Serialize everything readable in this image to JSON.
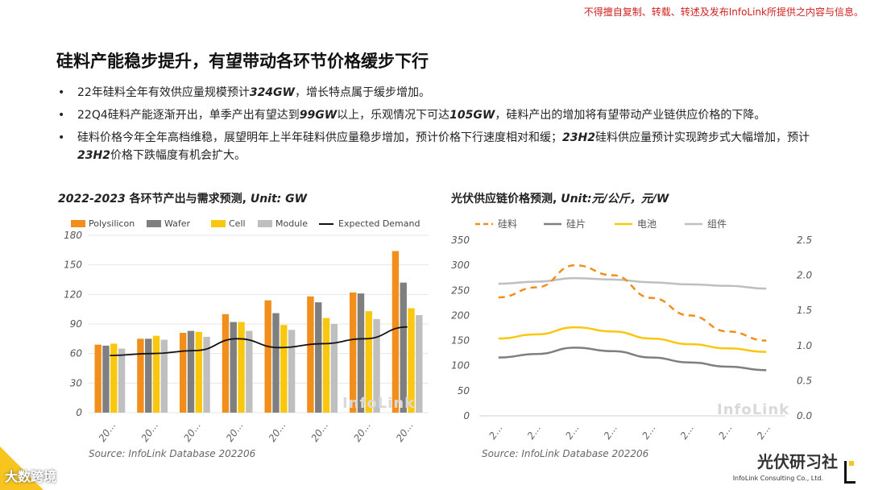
{
  "notice": "不得擅自复制、转载、转述及发布InfoLink所提供之内容与信息。",
  "slide_title": "硅料产能稳步提升，有望带动各环节价格缓步下行",
  "bullets": [
    {
      "a": "22年硅料全年有效供应量规模预计",
      "b": "324GW",
      "c": "，增长特点属于缓步增加。",
      "d": "",
      "e": ""
    },
    {
      "a": "22Q4硅料产能逐渐开出，单季产出有望达到",
      "b": "99GW",
      "c": "以上，乐观情况下可达",
      "d": "105GW",
      "e": "，硅料产出的增加将有望带动产业链供应价格的下降。"
    },
    {
      "a": "硅料价格今年全年高档维稳，展望明年上半年硅料供应量稳步增加，预计价格下行速度相对和缓；",
      "b": "23H2",
      "c": "硅料供应量预计实现跨步式大幅增加，预计",
      "d": "23H2",
      "e": "价格下跌幅度有机会扩大。"
    }
  ],
  "left_chart_title": {
    "year": "2022-2023",
    "text": " 各环节产出与需求预测, ",
    "unit": "Unit: GW"
  },
  "right_chart_title": {
    "text": "光伏供应链价格预测, ",
    "unit": "Unit:元/公斤，元/W"
  },
  "left_source": "Source: InfoLink Database 202206",
  "right_source": "Source: InfoLink Database 202206",
  "watermark": "InfoLink",
  "corner_brand": "大数跨境",
  "brand_name": "光伏研习社",
  "brand_sub": "InfoLink Consulting Co., Ltd.",
  "colors": {
    "polysilicon": "#f28e1c",
    "wafer": "#7f7f7f",
    "cell": "#f9c80e",
    "module": "#bfbfbf",
    "demand": "#111111"
  },
  "chart_data": [
    {
      "type": "bar",
      "categories": [
        "20...",
        "20...",
        "20...",
        "20...",
        "20...",
        "20...",
        "20...",
        "20..."
      ],
      "series": [
        {
          "name": "Polysilicon",
          "values": [
            69,
            75,
            81,
            100,
            114,
            118,
            122,
            164
          ]
        },
        {
          "name": "Wafer",
          "values": [
            68,
            75,
            83,
            92,
            101,
            112,
            121,
            132
          ]
        },
        {
          "name": "Cell",
          "values": [
            70,
            78,
            82,
            92,
            89,
            96,
            103,
            106
          ]
        },
        {
          "name": "Module",
          "values": [
            65,
            74,
            77,
            83,
            84,
            90,
            95,
            99
          ]
        }
      ],
      "line_series": {
        "name": "Expected Demand",
        "values": [
          58,
          60,
          63,
          75,
          66,
          70,
          75,
          87
        ]
      },
      "yticks": [
        0,
        30,
        60,
        90,
        120,
        150,
        180
      ],
      "ylim": [
        0,
        180
      ],
      "legend_position": "top"
    },
    {
      "type": "line",
      "categories": [
        "2...",
        "2...",
        "2...",
        "2...",
        "2...",
        "2...",
        "2...",
        "2..."
      ],
      "series": [
        {
          "name": "硅料",
          "axis": "left",
          "style": "dashed",
          "values": [
            236,
            256,
            300,
            280,
            235,
            200,
            168,
            150
          ]
        },
        {
          "name": "硅片",
          "axis": "right",
          "style": "solid",
          "values": [
            0.83,
            0.88,
            0.97,
            0.92,
            0.83,
            0.76,
            0.7,
            0.65
          ]
        },
        {
          "name": "电池",
          "axis": "right",
          "style": "solid",
          "values": [
            1.1,
            1.16,
            1.26,
            1.2,
            1.1,
            1.02,
            0.96,
            0.91
          ]
        },
        {
          "name": "组件",
          "axis": "right",
          "style": "solid",
          "values": [
            1.88,
            1.91,
            1.96,
            1.94,
            1.9,
            1.87,
            1.85,
            1.81
          ]
        }
      ],
      "yticks_left": [
        0,
        50,
        100,
        150,
        200,
        250,
        300,
        350
      ],
      "ylim_left": [
        0,
        350
      ],
      "yticks_right": [
        0.0,
        0.5,
        1.0,
        1.5,
        2.0,
        2.5
      ],
      "ylim_right": [
        0,
        2.5
      ],
      "legend_position": "top"
    }
  ]
}
